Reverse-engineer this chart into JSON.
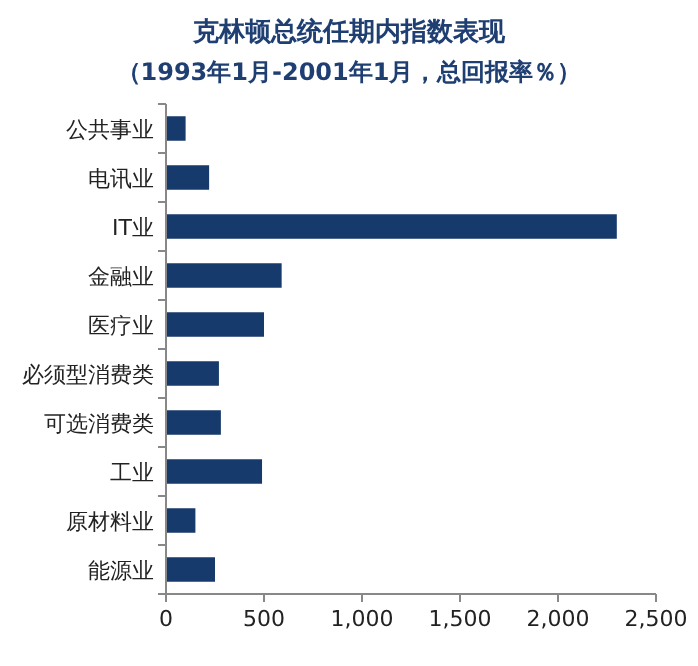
{
  "chart_data": {
    "type": "bar",
    "orientation": "horizontal",
    "title": "克林顿总统任期内指数表现",
    "subtitle": "（1993年1月-2001年1月，总回报率％）",
    "categories": [
      "公共事业",
      "电讯业",
      "IT业",
      "金融业",
      "医疗业",
      "必须型消费类",
      "可选消费类",
      "工业",
      "原材料业",
      "能源业"
    ],
    "values": [
      100,
      220,
      2300,
      590,
      500,
      270,
      280,
      490,
      150,
      250
    ],
    "color": "#173a6c",
    "xlim": [
      0,
      2500
    ],
    "xticks": [
      {
        "value": 0,
        "label": "0"
      },
      {
        "value": 500,
        "label": "500"
      },
      {
        "value": 1000,
        "label": "1,000"
      },
      {
        "value": 1500,
        "label": "1,500"
      },
      {
        "value": 2000,
        "label": "2,000"
      },
      {
        "value": 2500,
        "label": "2,500"
      }
    ]
  }
}
